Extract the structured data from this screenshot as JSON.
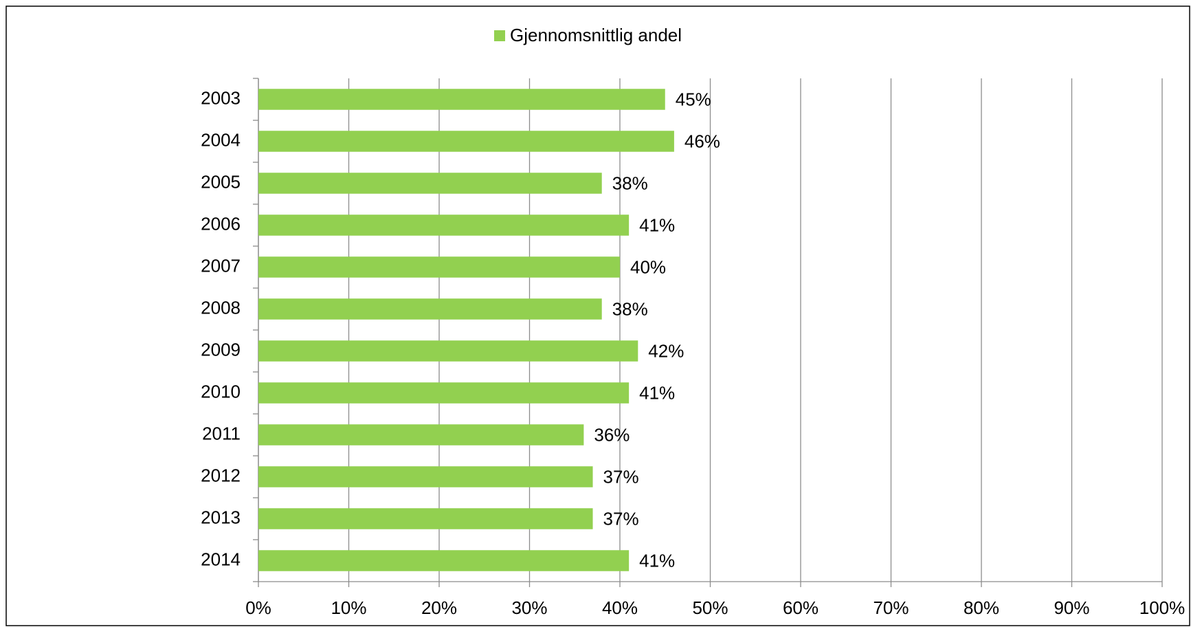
{
  "chart_data": {
    "type": "bar",
    "orientation": "horizontal",
    "categories": [
      "2003",
      "2004",
      "2005",
      "2006",
      "2007",
      "2008",
      "2009",
      "2010",
      "2011",
      "2012",
      "2013",
      "2014"
    ],
    "series": [
      {
        "name": "Gjennomsnittlig andel",
        "color": "#92d050",
        "values": [
          45,
          46,
          38,
          41,
          40,
          38,
          42,
          41,
          36,
          37,
          37,
          41
        ],
        "value_labels": [
          "45%",
          "46%",
          "38%",
          "41%",
          "40%",
          "38%",
          "42%",
          "41%",
          "36%",
          "37%",
          "37%",
          "41%"
        ]
      }
    ],
    "xlim": [
      0,
      100
    ],
    "xticks": [
      {
        "value": 0,
        "label": "0%"
      },
      {
        "value": 10,
        "label": "10%"
      },
      {
        "value": 20,
        "label": "20%"
      },
      {
        "value": 30,
        "label": "30%"
      },
      {
        "value": 40,
        "label": "40%"
      },
      {
        "value": 50,
        "label": "50%"
      },
      {
        "value": 60,
        "label": "60%"
      },
      {
        "value": 70,
        "label": "70%"
      },
      {
        "value": 80,
        "label": "80%"
      },
      {
        "value": 90,
        "label": "90%"
      },
      {
        "value": 100,
        "label": "100%"
      }
    ],
    "grid": true,
    "legend": "top"
  }
}
